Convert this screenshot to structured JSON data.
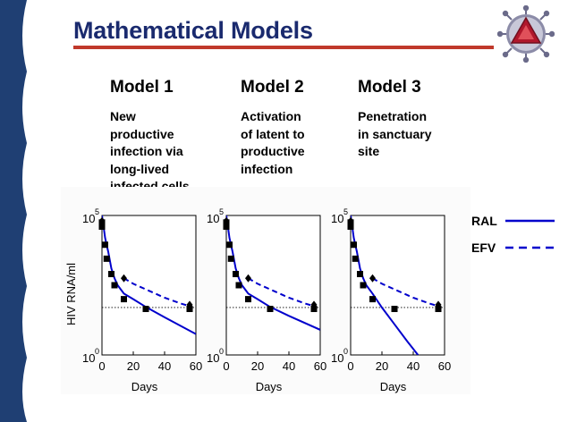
{
  "slide": {
    "title": "Mathematical Models",
    "colors": {
      "title": "#1a2a6e",
      "rule": "#c0392b",
      "sidebar": "#1f3f73",
      "series": "#0000cc"
    }
  },
  "models": [
    {
      "heading": "Model 1",
      "description": [
        "New",
        "productive",
        "infection via",
        "long-lived",
        "infected cells"
      ]
    },
    {
      "heading": "Model 2",
      "description": [
        "Activation",
        "of latent to",
        "productive",
        "infection"
      ]
    },
    {
      "heading": "Model 3",
      "description": [
        "Penetration",
        "in sanctuary",
        "site"
      ]
    }
  ],
  "legend": [
    {
      "label": "RAL",
      "style": "solid"
    },
    {
      "label": "EFV",
      "style": "dashed"
    }
  ],
  "chart_data": [
    {
      "type": "line",
      "xlabel": "Days",
      "ylabel": "HIV RNA/ml",
      "xlim": [
        0,
        60
      ],
      "ylim_log10": [
        0,
        5
      ],
      "xticks": [
        "0",
        "20",
        "40",
        "60"
      ],
      "yticks": [
        {
          "base": "10",
          "exp": "0"
        },
        {
          "base": "10",
          "exp": "5"
        }
      ],
      "reference_line_log10": 1.7,
      "series": [
        {
          "name": "RAL",
          "style": "solid",
          "points": [
            [
              0,
              5
            ],
            [
              1,
              4.6
            ],
            [
              2,
              4.2
            ],
            [
              4,
              3.7
            ],
            [
              6,
              3.1
            ],
            [
              8,
              2.75
            ],
            [
              10,
              2.5
            ],
            [
              14,
              2.2
            ],
            [
              20,
              2.0
            ],
            [
              28,
              1.72
            ],
            [
              40,
              1.35
            ],
            [
              60,
              0.75
            ]
          ]
        },
        {
          "name": "EFV",
          "style": "dashed",
          "points": [
            [
              14,
              2.75
            ],
            [
              20,
              2.55
            ],
            [
              30,
              2.3
            ],
            [
              40,
              2.05
            ],
            [
              50,
              1.85
            ],
            [
              56,
              1.75
            ]
          ]
        }
      ],
      "markers": {
        "squares": [
          [
            0,
            4.75
          ],
          [
            0,
            4.6
          ],
          [
            2,
            3.95
          ],
          [
            3,
            3.45
          ],
          [
            6,
            2.9
          ],
          [
            8,
            2.5
          ],
          [
            14,
            2.0
          ],
          [
            28,
            1.65
          ],
          [
            56,
            1.65
          ]
        ],
        "diamonds": [
          [
            0,
            4.8
          ],
          [
            14,
            2.75
          ],
          [
            56,
            1.8
          ]
        ]
      }
    },
    {
      "type": "line",
      "xlabel": "Days",
      "xlim": [
        0,
        60
      ],
      "ylim_log10": [
        0,
        5
      ],
      "xticks": [
        "0",
        "20",
        "40",
        "60"
      ],
      "yticks": [
        {
          "base": "10",
          "exp": "0"
        },
        {
          "base": "10",
          "exp": "5"
        }
      ],
      "reference_line_log10": 1.7,
      "series": [
        {
          "name": "RAL",
          "style": "solid",
          "points": [
            [
              0,
              5
            ],
            [
              1,
              4.6
            ],
            [
              2,
              4.2
            ],
            [
              4,
              3.7
            ],
            [
              6,
              3.1
            ],
            [
              8,
              2.75
            ],
            [
              10,
              2.5
            ],
            [
              14,
              2.2
            ],
            [
              20,
              2.0
            ],
            [
              28,
              1.72
            ],
            [
              40,
              1.4
            ],
            [
              60,
              0.9
            ]
          ]
        },
        {
          "name": "EFV",
          "style": "dashed",
          "points": [
            [
              14,
              2.75
            ],
            [
              20,
              2.55
            ],
            [
              30,
              2.3
            ],
            [
              40,
              2.05
            ],
            [
              50,
              1.85
            ],
            [
              56,
              1.75
            ]
          ]
        }
      ],
      "markers": {
        "squares": [
          [
            0,
            4.75
          ],
          [
            0,
            4.6
          ],
          [
            2,
            3.95
          ],
          [
            3,
            3.45
          ],
          [
            6,
            2.9
          ],
          [
            8,
            2.5
          ],
          [
            14,
            2.0
          ],
          [
            28,
            1.65
          ],
          [
            56,
            1.65
          ]
        ],
        "diamonds": [
          [
            0,
            4.8
          ],
          [
            14,
            2.75
          ],
          [
            56,
            1.8
          ]
        ]
      }
    },
    {
      "type": "line",
      "xlabel": "Days",
      "xlim": [
        0,
        60
      ],
      "ylim_log10": [
        0,
        5
      ],
      "xticks": [
        "0",
        "20",
        "40",
        "60"
      ],
      "yticks": [
        {
          "base": "10",
          "exp": "0"
        },
        {
          "base": "10",
          "exp": "5"
        }
      ],
      "reference_line_log10": 1.7,
      "series": [
        {
          "name": "RAL",
          "style": "solid",
          "points": [
            [
              0,
              5
            ],
            [
              1,
              4.6
            ],
            [
              2,
              4.2
            ],
            [
              4,
              3.7
            ],
            [
              6,
              3.1
            ],
            [
              8,
              2.75
            ],
            [
              10,
              2.5
            ],
            [
              14,
              2.2
            ],
            [
              20,
              1.7
            ],
            [
              28,
              1.1
            ],
            [
              36,
              0.5
            ],
            [
              43,
              0
            ]
          ]
        },
        {
          "name": "EFV",
          "style": "dashed",
          "points": [
            [
              14,
              2.75
            ],
            [
              20,
              2.55
            ],
            [
              30,
              2.3
            ],
            [
              40,
              2.05
            ],
            [
              50,
              1.85
            ],
            [
              56,
              1.75
            ]
          ]
        }
      ],
      "markers": {
        "squares": [
          [
            0,
            4.75
          ],
          [
            0,
            4.6
          ],
          [
            2,
            3.95
          ],
          [
            3,
            3.45
          ],
          [
            6,
            2.9
          ],
          [
            8,
            2.5
          ],
          [
            14,
            2.0
          ],
          [
            28,
            1.65
          ],
          [
            56,
            1.65
          ]
        ],
        "diamonds": [
          [
            0,
            4.8
          ],
          [
            14,
            2.75
          ],
          [
            56,
            1.8
          ]
        ]
      }
    }
  ]
}
